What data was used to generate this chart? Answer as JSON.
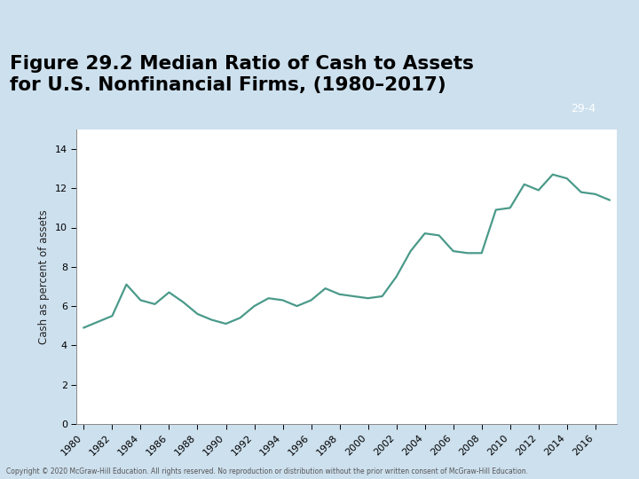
{
  "title_line1": "Figure 29.2 Median Ratio of Cash to Assets",
  "title_line2": "for U.S. Nonfinancial Firms, (1980–2017)",
  "slide_label": "29-4",
  "ylabel": "Cash as percent of assets",
  "years": [
    1980,
    1981,
    1982,
    1983,
    1984,
    1985,
    1986,
    1987,
    1988,
    1989,
    1990,
    1991,
    1992,
    1993,
    1994,
    1995,
    1996,
    1997,
    1998,
    1999,
    2000,
    2001,
    2002,
    2003,
    2004,
    2005,
    2006,
    2007,
    2008,
    2009,
    2010,
    2011,
    2012,
    2013,
    2014,
    2015,
    2016,
    2017
  ],
  "values": [
    4.9,
    5.2,
    5.5,
    7.1,
    6.3,
    6.1,
    6.7,
    6.2,
    5.6,
    5.3,
    5.1,
    5.4,
    6.0,
    6.4,
    6.3,
    6.0,
    6.3,
    6.9,
    6.6,
    6.5,
    6.4,
    6.5,
    7.5,
    8.8,
    9.7,
    9.6,
    8.8,
    8.7,
    8.7,
    10.9,
    11.0,
    12.2,
    11.9,
    12.7,
    12.5,
    11.8,
    11.7,
    11.4
  ],
  "line_color": "#4a9a8a",
  "line_width": 1.6,
  "bg_outer": "#cde0ee",
  "bg_plot_outer": "#cde0ee",
  "bg_plot_inner": "#ffffff",
  "teal_band_color": "#6aacbc",
  "slide_label_bg": "#c96050",
  "slide_label_color": "#ffffff",
  "title_color": "#000000",
  "yticks": [
    0,
    2,
    4,
    6,
    8,
    10,
    12,
    14
  ],
  "xtick_years": [
    1980,
    1982,
    1984,
    1986,
    1988,
    1990,
    1992,
    1994,
    1996,
    1998,
    2000,
    2002,
    2004,
    2006,
    2008,
    2010,
    2012,
    2014,
    2016
  ],
  "ylim": [
    0,
    15
  ],
  "xlim": [
    1979.5,
    2017.5
  ],
  "copyright": "Copyright © 2020 McGraw-Hill Education. All rights reserved. No reproduction or distribution without the prior written consent of McGraw-Hill Education."
}
